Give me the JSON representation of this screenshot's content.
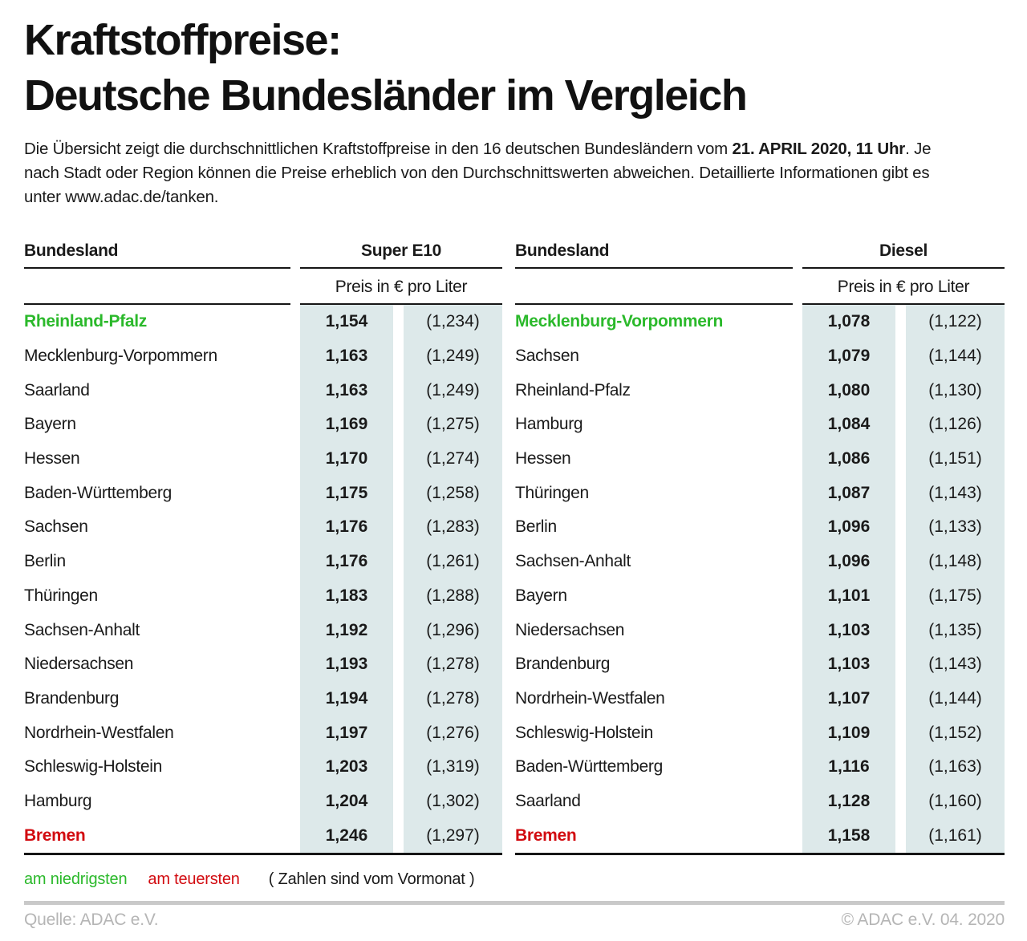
{
  "header": {
    "title_line1": "Kraftstoffpreise:",
    "title_line2": "Deutsche Bundesländer im Vergleich",
    "intro_part1": "Die Übersicht zeigt die durchschnittlichen Kraftstoffpreise in den 16 deutschen Bundesländern vom ",
    "intro_bold": "21. APRIL 2020, 11 Uhr",
    "intro_part2": ". Je nach Stadt oder Region können die Preise erheblich von den Durchschnittswerten abweichen. Detaillierte Informationen gibt es unter www.adac.de/tanken."
  },
  "chart_data": [
    {
      "type": "table",
      "col_bundesland": "Bundesland",
      "col_fuel": "Super E10",
      "col_price": "Preis in € pro Liter",
      "rows": [
        {
          "name": "Rheinland-Pfalz",
          "value": "1,154",
          "prev": "(1,234)",
          "highlight": "lowest"
        },
        {
          "name": "Mecklenburg-Vorpommern",
          "value": "1,163",
          "prev": "(1,249)",
          "highlight": ""
        },
        {
          "name": "Saarland",
          "value": "1,163",
          "prev": "(1,249)",
          "highlight": ""
        },
        {
          "name": "Bayern",
          "value": "1,169",
          "prev": "(1,275)",
          "highlight": ""
        },
        {
          "name": "Hessen",
          "value": "1,170",
          "prev": "(1,274)",
          "highlight": ""
        },
        {
          "name": "Baden-Württemberg",
          "value": "1,175",
          "prev": "(1,258)",
          "highlight": ""
        },
        {
          "name": "Sachsen",
          "value": "1,176",
          "prev": "(1,283)",
          "highlight": ""
        },
        {
          "name": "Berlin",
          "value": "1,176",
          "prev": "(1,261)",
          "highlight": ""
        },
        {
          "name": "Thüringen",
          "value": "1,183",
          "prev": "(1,288)",
          "highlight": ""
        },
        {
          "name": "Sachsen-Anhalt",
          "value": "1,192",
          "prev": "(1,296)",
          "highlight": ""
        },
        {
          "name": "Niedersachsen",
          "value": "1,193",
          "prev": "(1,278)",
          "highlight": ""
        },
        {
          "name": "Brandenburg",
          "value": "1,194",
          "prev": "(1,278)",
          "highlight": ""
        },
        {
          "name": "Nordrhein-Westfalen",
          "value": "1,197",
          "prev": "(1,276)",
          "highlight": ""
        },
        {
          "name": "Schleswig-Holstein",
          "value": "1,203",
          "prev": "(1,319)",
          "highlight": ""
        },
        {
          "name": "Hamburg",
          "value": "1,204",
          "prev": "(1,302)",
          "highlight": ""
        },
        {
          "name": "Bremen",
          "value": "1,246",
          "prev": "(1,297)",
          "highlight": "highest"
        }
      ]
    },
    {
      "type": "table",
      "col_bundesland": "Bundesland",
      "col_fuel": "Diesel",
      "col_price": "Preis in € pro Liter",
      "rows": [
        {
          "name": "Mecklenburg-Vorpommern",
          "value": "1,078",
          "prev": "(1,122)",
          "highlight": "lowest"
        },
        {
          "name": "Sachsen",
          "value": "1,079",
          "prev": "(1,144)",
          "highlight": ""
        },
        {
          "name": "Rheinland-Pfalz",
          "value": "1,080",
          "prev": "(1,130)",
          "highlight": ""
        },
        {
          "name": "Hamburg",
          "value": "1,084",
          "prev": "(1,126)",
          "highlight": ""
        },
        {
          "name": "Hessen",
          "value": "1,086",
          "prev": "(1,151)",
          "highlight": ""
        },
        {
          "name": "Thüringen",
          "value": "1,087",
          "prev": "(1,143)",
          "highlight": ""
        },
        {
          "name": "Berlin",
          "value": "1,096",
          "prev": "(1,133)",
          "highlight": ""
        },
        {
          "name": "Sachsen-Anhalt",
          "value": "1,096",
          "prev": "(1,148)",
          "highlight": ""
        },
        {
          "name": "Bayern",
          "value": "1,101",
          "prev": "(1,175)",
          "highlight": ""
        },
        {
          "name": "Niedersachsen",
          "value": "1,103",
          "prev": "(1,135)",
          "highlight": ""
        },
        {
          "name": "Brandenburg",
          "value": "1,103",
          "prev": "(1,143)",
          "highlight": ""
        },
        {
          "name": "Nordrhein-Westfalen",
          "value": "1,107",
          "prev": "(1,144)",
          "highlight": ""
        },
        {
          "name": "Schleswig-Holstein",
          "value": "1,109",
          "prev": "(1,152)",
          "highlight": ""
        },
        {
          "name": "Baden-Württemberg",
          "value": "1,116",
          "prev": "(1,163)",
          "highlight": ""
        },
        {
          "name": "Saarland",
          "value": "1,128",
          "prev": "(1,160)",
          "highlight": ""
        },
        {
          "name": "Bremen",
          "value": "1,158",
          "prev": "(1,161)",
          "highlight": "highest"
        }
      ]
    }
  ],
  "legend": {
    "lowest": "am niedrigsten",
    "highest": "am teuersten",
    "note": "( Zahlen sind vom Vormonat )"
  },
  "footer": {
    "source": "Quelle: ADAC e.V.",
    "copyright": "© ADAC e.V. 04. 2020"
  },
  "colors": {
    "lowest_green": "#2bb92b",
    "highest_red": "#d20b10",
    "value_cell_bg": "#dde9ea",
    "rule_black": "#161616",
    "divider_gray": "#c9c9c9",
    "footer_gray": "#b5b5b5"
  }
}
